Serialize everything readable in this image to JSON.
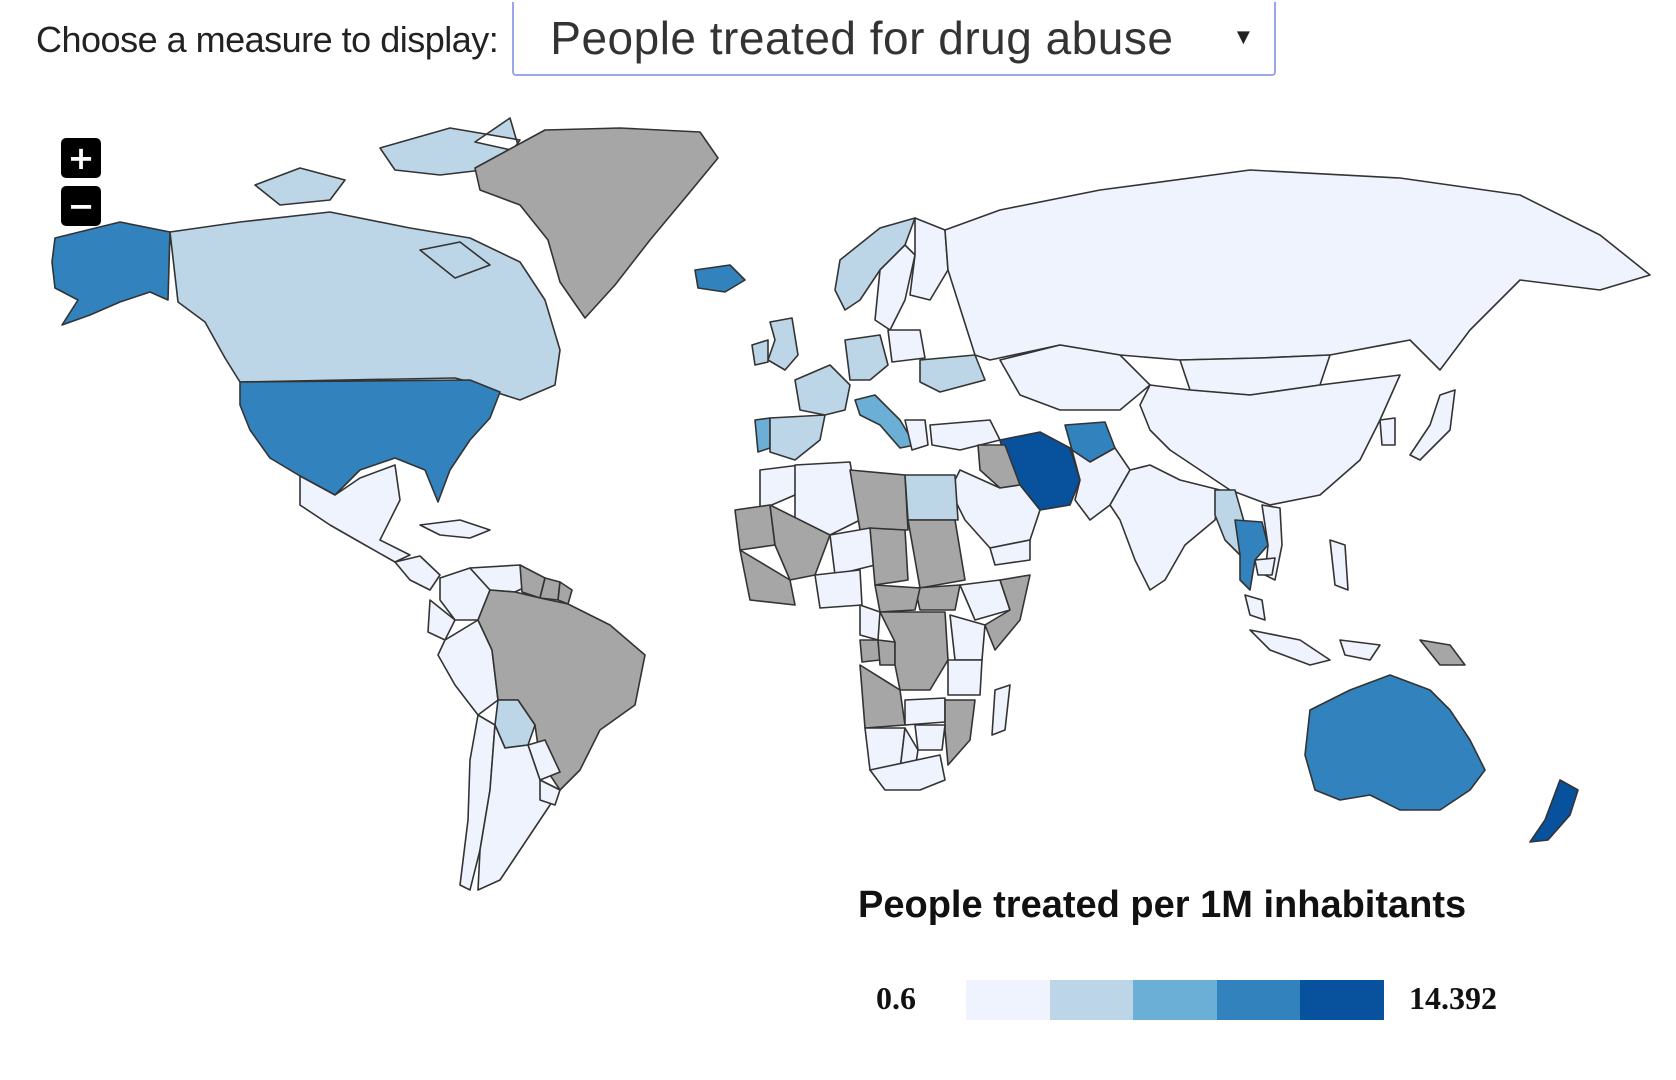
{
  "controls": {
    "measure_label": "Choose a measure to display:",
    "measure_selected": "People treated for drug abuse",
    "zoom_in_label": "+",
    "zoom_out_label": "−"
  },
  "legend": {
    "title": "People treated per 1M inhabitants",
    "min_label": "0.6",
    "max_label": "14.392",
    "colors": [
      "#eef3fd",
      "#bcd6e8",
      "#6baed6",
      "#3182bd",
      "#08519c"
    ]
  },
  "map": {
    "no_data_color": "#a6a6a6",
    "shading": {
      "Alaska": 3,
      "Canada": 1,
      "United States": 3,
      "Greenland": "no_data",
      "Iceland": 3,
      "Mexico": 0,
      "Central America": 0,
      "Caribbean": 0,
      "Colombia": 0,
      "Venezuela": 0,
      "Guyana": "no_data",
      "Suriname": "no_data",
      "French Guiana": "no_data",
      "Ecuador": 0,
      "Peru": 0,
      "Brazil": "no_data",
      "Bolivia": 1,
      "Paraguay": 0,
      "Chile": 0,
      "Argentina": 0,
      "Uruguay": 0,
      "Norway": 1,
      "Sweden": 0,
      "Finland": 0,
      "United Kingdom": 1,
      "Ireland": 1,
      "Portugal": 2,
      "Spain": 1,
      "France": 1,
      "Germany": 1,
      "Italy": 2,
      "Poland": 0,
      "Ukraine": 1,
      "Greece": 0,
      "Turkey": 0,
      "Russia": 0,
      "Kazakhstan": 0,
      "Mongolia": 0,
      "China": 0,
      "Japan": 0,
      "Korea": 0,
      "Iran": 4,
      "Afghanistan": 3,
      "Pakistan": 0,
      "India": 0,
      "Iraq": "no_data",
      "Saudi Arabia": 0,
      "Yemen": 0,
      "Thailand": 3,
      "Myanmar": 1,
      "Vietnam": 0,
      "Cambodia": 0,
      "Malaysia": 0,
      "Indonesia": 0,
      "Philippines": 0,
      "Papua New Guinea": "no_data",
      "Australia": 3,
      "New Zealand": 4,
      "Morocco": 0,
      "Algeria": 0,
      "Libya": "no_data",
      "Egypt": 1,
      "Mali": "no_data",
      "Mauritania": "no_data",
      "West Africa": "no_data",
      "Niger": 0,
      "Nigeria": 0,
      "Chad": "no_data",
      "Sudan": "no_data",
      "South Sudan": "no_data",
      "Ethiopia": 0,
      "Somalia": "no_data",
      "Kenya": 0,
      "Central African Republic": "no_data",
      "Cameroon": 0,
      "Gabon": "no_data",
      "Congo": "no_data",
      "DR Congo": "no_data",
      "Angola": "no_data",
      "Tanzania": 0,
      "Zambia": 0,
      "Zimbabwe": 0,
      "Mozambique": "no_data",
      "Namibia": 0,
      "Botswana": 0,
      "South Africa": 0,
      "Madagascar": 0
    }
  }
}
